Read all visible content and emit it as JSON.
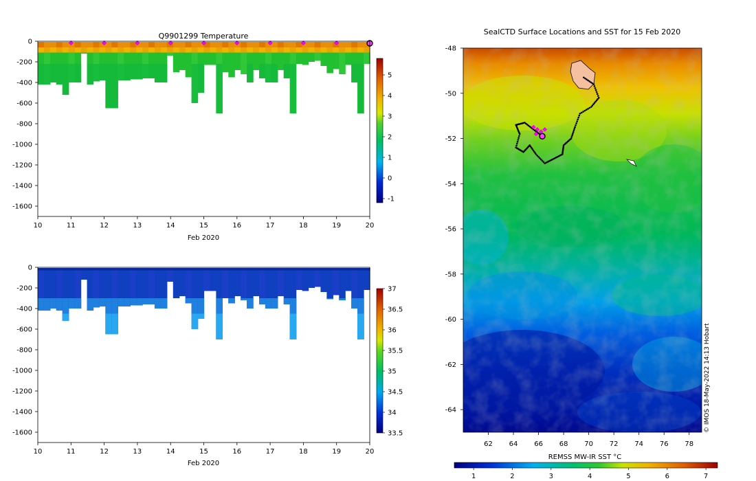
{
  "chart_data": [
    {
      "type": "heatmap",
      "name": "temperature-section",
      "title": "Q9901299  Temperature",
      "xlabel": "Feb 2020",
      "xlim": [
        10,
        20
      ],
      "x_ticks": [
        "10",
        "11",
        "12",
        "13",
        "14",
        "15",
        "16",
        "17",
        "18",
        "19",
        "20"
      ],
      "ylim": [
        -1700,
        0
      ],
      "y_ticks": [
        "0",
        "-200",
        "-400",
        "-600",
        "-800",
        "-1000",
        "-1200",
        "-1400",
        "-1600"
      ],
      "y_tick_values": [
        0,
        -200,
        -400,
        -600,
        -800,
        -1000,
        -1200,
        -1400,
        -1600
      ],
      "colorbar": {
        "min": -1.2,
        "max": 5.8,
        "ticks": [
          "-1",
          "0",
          "1",
          "2",
          "3",
          "4",
          "5"
        ],
        "tick_values": [
          -1,
          0,
          1,
          2,
          3,
          4,
          5
        ]
      },
      "surface_markers": [
        11,
        12,
        13,
        14,
        15,
        16,
        17,
        18,
        19
      ],
      "profile_depths_m": [
        420,
        420,
        400,
        420,
        520,
        400,
        400,
        120,
        420,
        390,
        380,
        650,
        650,
        380,
        380,
        370,
        370,
        360,
        360,
        400,
        400,
        140,
        300,
        280,
        350,
        600,
        500,
        230,
        230,
        700,
        300,
        350,
        280,
        320,
        400,
        280,
        360,
        400,
        400,
        280,
        360,
        700,
        220,
        230,
        200,
        190,
        240,
        310,
        270,
        320,
        230,
        400,
        700,
        220
      ]
    },
    {
      "type": "heatmap",
      "name": "salinity-section",
      "title": "",
      "xlabel": "Feb 2020",
      "xlim": [
        10,
        20
      ],
      "x_ticks": [
        "10",
        "11",
        "12",
        "13",
        "14",
        "15",
        "16",
        "17",
        "18",
        "19",
        "20"
      ],
      "ylim": [
        -1700,
        0
      ],
      "y_ticks": [
        "0",
        "-200",
        "-400",
        "-600",
        "-800",
        "-1000",
        "-1200",
        "-1400",
        "-1600"
      ],
      "y_tick_values": [
        0,
        -200,
        -400,
        -600,
        -800,
        -1000,
        -1200,
        -1400,
        -1600
      ],
      "colorbar": {
        "min": 33.5,
        "max": 37,
        "ticks": [
          "33.5",
          "34",
          "34.5",
          "35",
          "35.5",
          "36",
          "36.5",
          "37"
        ],
        "tick_values": [
          33.5,
          34,
          34.5,
          35,
          35.5,
          36,
          36.5,
          37
        ]
      }
    },
    {
      "type": "heatmap",
      "name": "sst-map",
      "title": "SealCTD Surface Locations and SST for 15 Feb 2020",
      "xlabel": "REMSS MW-IR SST °C",
      "xlim": [
        60,
        79
      ],
      "ylim": [
        -65,
        -48
      ],
      "x_ticks": [
        "62",
        "64",
        "66",
        "68",
        "70",
        "72",
        "74",
        "76",
        "78"
      ],
      "x_tick_values": [
        62,
        64,
        66,
        68,
        70,
        72,
        74,
        76,
        78
      ],
      "y_ticks": [
        "-48",
        "-50",
        "-52",
        "-54",
        "-56",
        "-58",
        "-60",
        "-62",
        "-64"
      ],
      "y_tick_values": [
        -48,
        -50,
        -52,
        -54,
        -56,
        -58,
        -60,
        -62,
        -64
      ],
      "colorbar": {
        "min": 0.5,
        "max": 7.3,
        "ticks": [
          "1",
          "2",
          "3",
          "4",
          "5",
          "6",
          "7"
        ],
        "tick_values": [
          1,
          2,
          3,
          4,
          5,
          6,
          7
        ]
      },
      "track": [
        [
          69.6,
          -49.3
        ],
        [
          70.4,
          -49.6
        ],
        [
          70.8,
          -50.2
        ],
        [
          70.2,
          -50.6
        ],
        [
          69.3,
          -50.9
        ],
        [
          68.9,
          -51.5
        ],
        [
          68.6,
          -52.0
        ],
        [
          68.0,
          -52.3
        ],
        [
          67.9,
          -52.7
        ],
        [
          67.2,
          -52.9
        ],
        [
          66.5,
          -53.1
        ],
        [
          65.8,
          -52.7
        ],
        [
          65.3,
          -52.3
        ],
        [
          64.8,
          -52.6
        ],
        [
          64.2,
          -52.4
        ],
        [
          64.5,
          -51.8
        ],
        [
          64.2,
          -51.4
        ],
        [
          64.9,
          -51.3
        ],
        [
          65.6,
          -51.6
        ],
        [
          66.3,
          -51.9
        ]
      ],
      "track_markers": [
        [
          65.6,
          -51.5
        ],
        [
          65.9,
          -51.6
        ],
        [
          66.2,
          -51.7
        ],
        [
          66.5,
          -51.6
        ],
        [
          65.8,
          -51.8
        ]
      ],
      "current_position": [
        66.3,
        -51.9
      ],
      "watermark": "© IMOS 18-May-2022 14:13 Hobart"
    }
  ]
}
